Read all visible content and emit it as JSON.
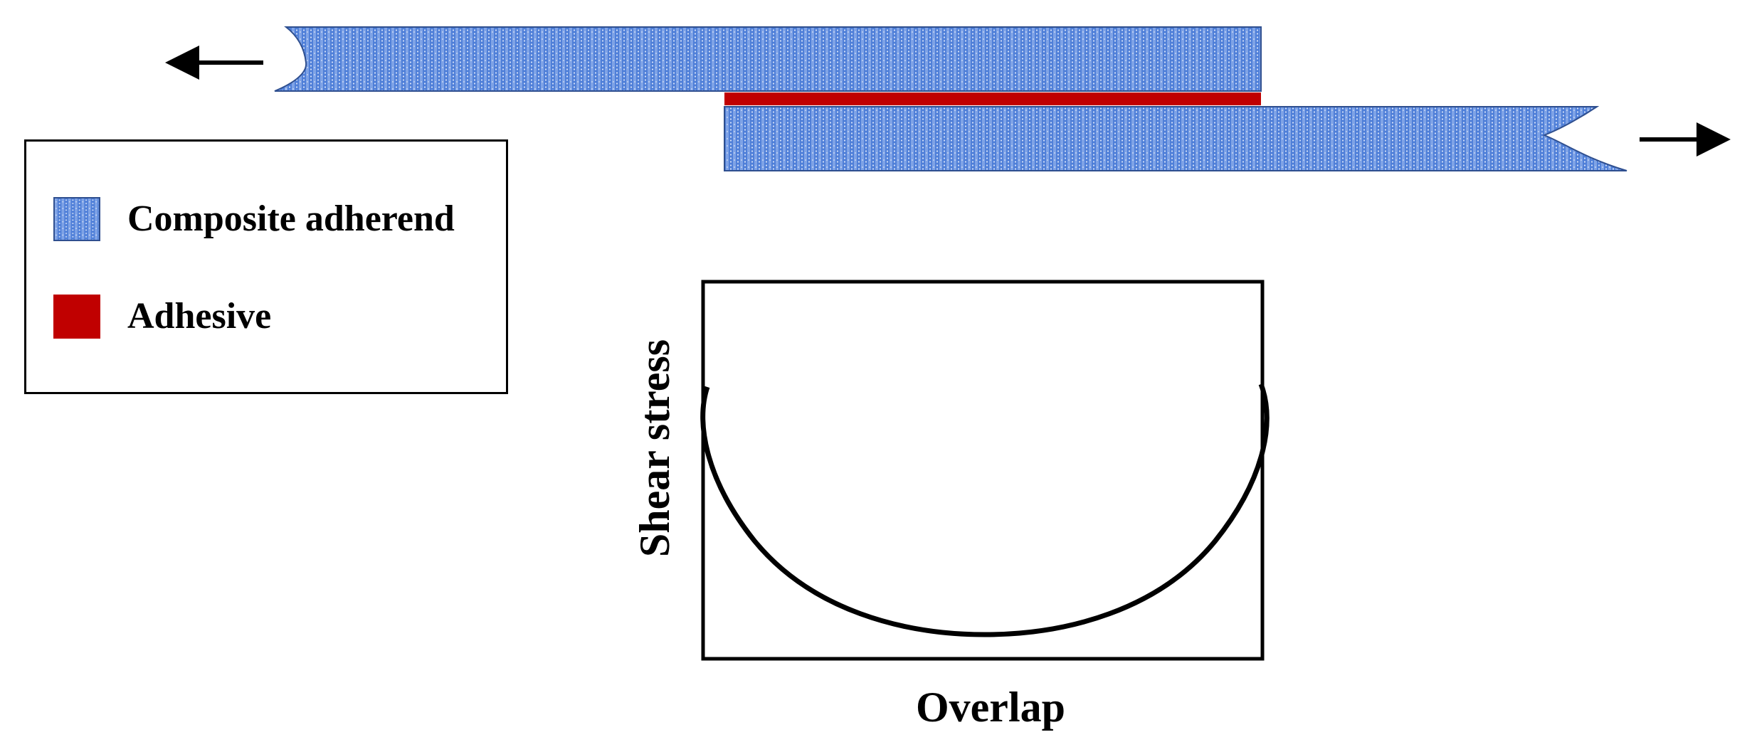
{
  "legend": {
    "items": [
      {
        "label": "Composite adherend",
        "swatch": "hatched-blue"
      },
      {
        "label": "Adhesive",
        "swatch": "solid-red"
      }
    ]
  },
  "graph": {
    "xlabel": "Overlap",
    "ylabel": "Shear stress"
  },
  "colors": {
    "adherend_fill": "#4f7fd8",
    "adherend_hatch": "#c8d8f6",
    "adherend_edge": "#2f4f8f",
    "adhesive": "#c00000",
    "ink": "#000000"
  },
  "icons": [
    "left-arrow-icon",
    "right-arrow-icon"
  ]
}
